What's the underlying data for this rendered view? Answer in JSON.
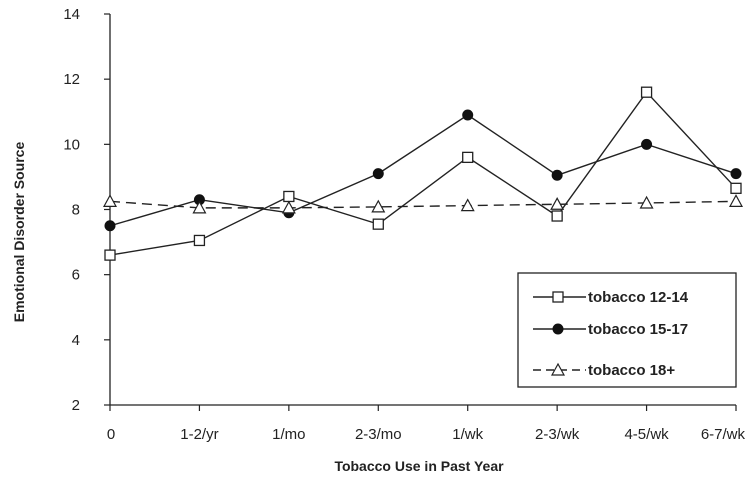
{
  "chart_data": {
    "type": "line",
    "title": "",
    "xlabel": "Tobacco Use in Past Year",
    "ylabel": "Emotional Disorder Source",
    "categories": [
      "0",
      "1-2/yr",
      "1/mo",
      "2-3/mo",
      "1/wk",
      "2-3/wk",
      "4-5/wk",
      "6-7/wk"
    ],
    "ylim": [
      2,
      14
    ],
    "yticks": [
      "2",
      "4",
      "6",
      "8",
      "10",
      "12",
      "14"
    ],
    "grid": false,
    "legend_position": "bottom-right",
    "series": [
      {
        "name": "tobacco 12-14",
        "marker": "open-square",
        "line": "solid",
        "values": [
          6.6,
          7.05,
          8.4,
          7.55,
          9.6,
          7.8,
          11.6,
          8.65
        ]
      },
      {
        "name": "tobacco 15-17",
        "marker": "filled-circle",
        "line": "solid",
        "values": [
          7.5,
          8.3,
          7.9,
          9.1,
          10.9,
          9.05,
          10.0,
          9.1
        ]
      },
      {
        "name": "tobacco 18+",
        "marker": "open-triangle",
        "line": "dashed",
        "values": [
          8.25,
          8.05,
          8.05,
          8.08,
          8.12,
          8.16,
          8.2,
          8.25
        ]
      }
    ],
    "colors": {
      "line": "#222222",
      "axis": "#222222",
      "background": "#ffffff"
    }
  }
}
